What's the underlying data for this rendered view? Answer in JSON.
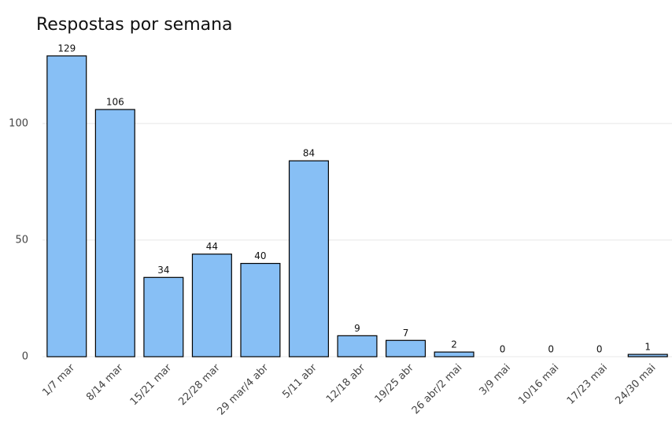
{
  "chart_data": {
    "type": "bar",
    "title": "Respostas por semana",
    "categories": [
      "1/7 mar",
      "8/14 mar",
      "15/21 mar",
      "22/28 mar",
      "29 mar/4 abr",
      "5/11 abr",
      "12/18 abr",
      "19/25 abr",
      "26 abr/2 mai",
      "3/9 mai",
      "10/16 mai",
      "17/23 mai",
      "24/30 mai"
    ],
    "values": [
      129,
      106,
      34,
      44,
      40,
      84,
      9,
      7,
      2,
      0,
      0,
      0,
      1
    ],
    "color": "#87bff5",
    "ylim": [
      0,
      130
    ],
    "yticks": [
      0,
      50,
      100
    ],
    "grid": true
  }
}
